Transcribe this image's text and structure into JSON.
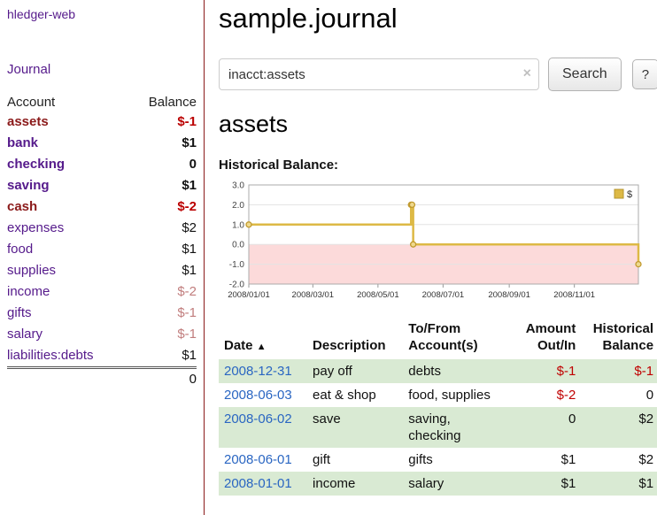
{
  "app": {
    "brand": "hledger-web",
    "nav": {
      "journal": "Journal"
    }
  },
  "sidebar": {
    "header": {
      "account": "Account",
      "balance": "Balance"
    },
    "accounts": [
      {
        "name": "assets",
        "balance": "$-1"
      },
      {
        "name": "bank",
        "balance": "$1"
      },
      {
        "name": "checking",
        "balance": "0"
      },
      {
        "name": "saving",
        "balance": "$1"
      },
      {
        "name": "cash",
        "balance": "$-2"
      },
      {
        "name": "expenses",
        "balance": "$2"
      },
      {
        "name": "food",
        "balance": "$1"
      },
      {
        "name": "supplies",
        "balance": "$1"
      },
      {
        "name": "income",
        "balance": "$-2"
      },
      {
        "name": "gifts",
        "balance": "$-1"
      },
      {
        "name": "salary",
        "balance": "$-1"
      },
      {
        "name": "liabilities:debts",
        "balance": "$1"
      }
    ],
    "total": "0"
  },
  "main": {
    "title": "sample.journal",
    "search": {
      "value": "inacct:assets",
      "clear_icon": "×",
      "search_button": "Search",
      "help_button": "?"
    },
    "account_heading": "assets",
    "chart_label": "Historical Balance:"
  },
  "chart_data": {
    "type": "line",
    "step": true,
    "title": "Historical Balance",
    "ylim": [
      -2.0,
      3.0
    ],
    "yticks": [
      3.0,
      2.0,
      1.0,
      0.0,
      -1.0,
      -2.0
    ],
    "xticks": [
      "2008/01/01",
      "2008/03/01",
      "2008/05/01",
      "2008/07/01",
      "2008/09/01",
      "2008/11/01"
    ],
    "xrange": [
      "2008-01-01",
      "2008-12-31"
    ],
    "series": [
      {
        "name": "$",
        "color": "#ddb945",
        "marker_fill": "#efd98d",
        "marker_stroke": "#c19a2e",
        "points": [
          [
            "2008-01-01",
            1
          ],
          [
            "2008-06-01",
            2
          ],
          [
            "2008-06-02",
            2
          ],
          [
            "2008-06-03",
            0
          ],
          [
            "2008-12-31",
            -1
          ]
        ]
      }
    ],
    "legend_position": "top-right",
    "legend_label": "$",
    "negative_region_color": "#fcdada",
    "grid": true
  },
  "register": {
    "columns": {
      "date": "Date",
      "description": "Description",
      "accounts": "To/From Account(s)",
      "amount": "Amount Out/In",
      "balance": "Historical Balance"
    },
    "sort_indicator": "▲",
    "rows": [
      {
        "date": "2008-12-31",
        "description": "pay off",
        "accounts": "debts",
        "amount": "$-1",
        "balance": "$-1"
      },
      {
        "date": "2008-06-03",
        "description": "eat & shop",
        "accounts": "food, supplies",
        "amount": "$-2",
        "balance": "0"
      },
      {
        "date": "2008-06-02",
        "description": "save",
        "accounts": "saving, checking",
        "amount": "0",
        "balance": "$2"
      },
      {
        "date": "2008-06-01",
        "description": "gift",
        "accounts": "gifts",
        "amount": "$1",
        "balance": "$2"
      },
      {
        "date": "2008-01-01",
        "description": "income",
        "accounts": "salary",
        "amount": "$1",
        "balance": "$1"
      }
    ]
  }
}
